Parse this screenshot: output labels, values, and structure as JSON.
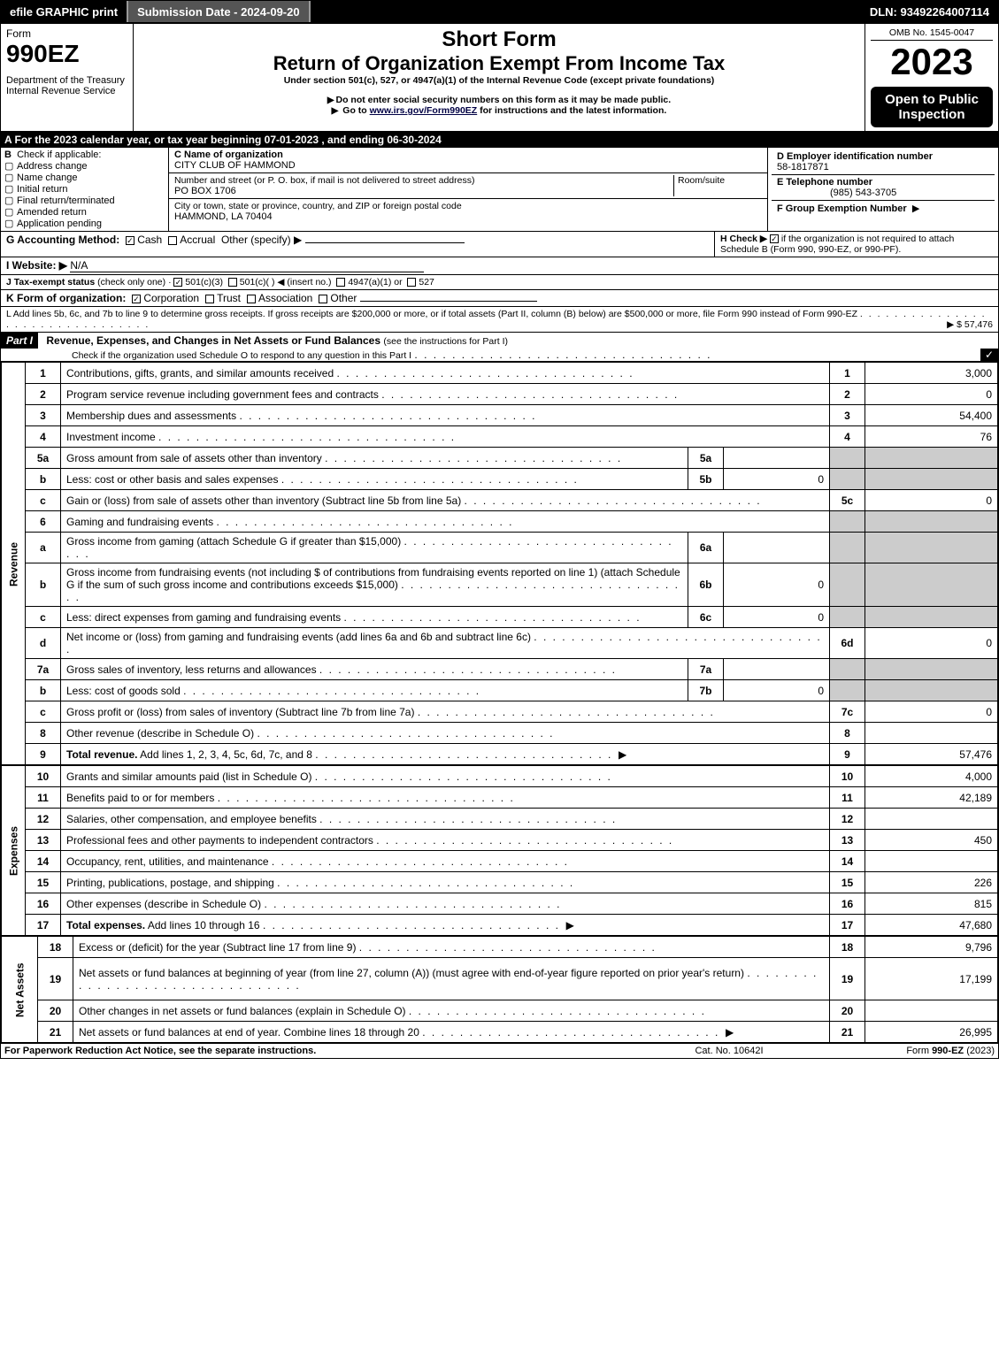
{
  "topbar": {
    "efile": "efile GRAPHIC print",
    "submission": "Submission Date - 2024-09-20",
    "dln": "DLN: 93492264007114"
  },
  "header": {
    "form_label": "Form",
    "form_no": "990EZ",
    "dept": "Department of the Treasury",
    "irs": "Internal Revenue Service",
    "short_form": "Short Form",
    "title": "Return of Organization Exempt From Income Tax",
    "subtitle": "Under section 501(c), 527, or 4947(a)(1) of the Internal Revenue Code (except private foundations)",
    "note1": "Do not enter social security numbers on this form as it may be made public.",
    "note2": "Go to",
    "note2_link": "www.irs.gov/Form990EZ",
    "note2_rest": "for instructions and the latest information.",
    "omb": "OMB No. 1545-0047",
    "year": "2023",
    "open": "Open to Public Inspection"
  },
  "section_a": "A  For the 2023 calendar year, or tax year beginning 07-01-2023 , and ending 06-30-2024",
  "box_b": {
    "title": "B",
    "label": "Check if applicable:",
    "opts": [
      "Address change",
      "Name change",
      "Initial return",
      "Final return/terminated",
      "Amended return",
      "Application pending"
    ]
  },
  "box_c": {
    "name_label": "C Name of organization",
    "name": "CITY CLUB OF HAMMOND",
    "addr_label": "Number and street (or P. O. box, if mail is not delivered to street address)",
    "addr": "PO BOX 1706",
    "room": "Room/suite",
    "city_label": "City or town, state or province, country, and ZIP or foreign postal code",
    "city": "HAMMOND, LA  70404"
  },
  "box_d": {
    "label": "D Employer identification number",
    "val": "58-1817871"
  },
  "box_e": {
    "label": "E Telephone number",
    "val": "(985) 543-3705"
  },
  "box_f": {
    "label": "F Group Exemption Number",
    "arrow": "▶"
  },
  "line_g": {
    "label": "G Accounting Method:",
    "cash": "Cash",
    "accrual": "Accrual",
    "other": "Other (specify) ▶"
  },
  "line_h": {
    "label": "H   Check ▶",
    "rest": "if the organization is not required to attach Schedule B (Form 990, 990-EZ, or 990-PF)."
  },
  "line_i": {
    "label": "I Website: ▶",
    "val": "N/A"
  },
  "line_j": {
    "label": "J Tax-exempt status",
    "note": "(check only one) ·",
    "o1": "501(c)(3)",
    "o2": "501(c)(  ) ◀ (insert no.)",
    "o3": "4947(a)(1) or",
    "o4": "527"
  },
  "line_k": {
    "label": "K Form of organization:",
    "opts": [
      "Corporation",
      "Trust",
      "Association",
      "Other"
    ]
  },
  "line_l": {
    "text": "L Add lines 5b, 6c, and 7b to line 9 to determine gross receipts. If gross receipts are $200,000 or more, or if total assets (Part II, column (B) below) are $500,000 or more, file Form 990 instead of Form 990-EZ",
    "val": "▶ $ 57,476"
  },
  "part1": {
    "bar": "Part I",
    "title": "Revenue, Expenses, and Changes in Net Assets or Fund Balances",
    "note": "(see the instructions for Part I)",
    "check_line": "Check if the organization used Schedule O to respond to any question in this Part I"
  },
  "revenue_label": "Revenue",
  "expenses_label": "Expenses",
  "netassets_label": "Net Assets",
  "rows": [
    {
      "n": "1",
      "t": "Contributions, gifts, grants, and similar amounts received",
      "rn": "1",
      "rv": "3,000"
    },
    {
      "n": "2",
      "t": "Program service revenue including government fees and contracts",
      "rn": "2",
      "rv": "0"
    },
    {
      "n": "3",
      "t": "Membership dues and assessments",
      "rn": "3",
      "rv": "54,400"
    },
    {
      "n": "4",
      "t": "Investment income",
      "rn": "4",
      "rv": "76"
    },
    {
      "n": "5a",
      "t": "Gross amount from sale of assets other than inventory",
      "mn": "5a",
      "mv": "",
      "shade": true
    },
    {
      "n": "b",
      "t": "Less: cost or other basis and sales expenses",
      "mn": "5b",
      "mv": "0",
      "shade": true
    },
    {
      "n": "c",
      "t": "Gain or (loss) from sale of assets other than inventory (Subtract line 5b from line 5a)",
      "rn": "5c",
      "rv": "0"
    },
    {
      "n": "6",
      "t": "Gaming and fundraising events",
      "shade_all": true
    },
    {
      "n": "a",
      "t": "Gross income from gaming (attach Schedule G if greater than $15,000)",
      "mn": "6a",
      "mv": "",
      "shade": true
    },
    {
      "n": "b",
      "t": "Gross income from fundraising events (not including $                      of contributions from fundraising events reported on line 1) (attach Schedule G if the sum of such gross income and contributions exceeds $15,000)",
      "mn": "6b",
      "mv": "0",
      "shade": true,
      "tall": true
    },
    {
      "n": "c",
      "t": "Less: direct expenses from gaming and fundraising events",
      "mn": "6c",
      "mv": "0",
      "shade": true
    },
    {
      "n": "d",
      "t": "Net income or (loss) from gaming and fundraising events (add lines 6a and 6b and subtract line 6c)",
      "rn": "6d",
      "rv": "0"
    },
    {
      "n": "7a",
      "t": "Gross sales of inventory, less returns and allowances",
      "mn": "7a",
      "mv": "",
      "shade": true
    },
    {
      "n": "b",
      "t": "Less: cost of goods sold",
      "mn": "7b",
      "mv": "0",
      "shade": true
    },
    {
      "n": "c",
      "t": "Gross profit or (loss) from sales of inventory (Subtract line 7b from line 7a)",
      "rn": "7c",
      "rv": "0"
    },
    {
      "n": "8",
      "t": "Other revenue (describe in Schedule O)",
      "rn": "8",
      "rv": ""
    },
    {
      "n": "9",
      "t": "Total revenue. Add lines 1, 2, 3, 4, 5c, 6d, 7c, and 8",
      "rn": "9",
      "rv": "57,476",
      "bold": true,
      "arrow": true
    }
  ],
  "exp_rows": [
    {
      "n": "10",
      "t": "Grants and similar amounts paid (list in Schedule O)",
      "rn": "10",
      "rv": "4,000"
    },
    {
      "n": "11",
      "t": "Benefits paid to or for members",
      "rn": "11",
      "rv": "42,189"
    },
    {
      "n": "12",
      "t": "Salaries, other compensation, and employee benefits",
      "rn": "12",
      "rv": ""
    },
    {
      "n": "13",
      "t": "Professional fees and other payments to independent contractors",
      "rn": "13",
      "rv": "450"
    },
    {
      "n": "14",
      "t": "Occupancy, rent, utilities, and maintenance",
      "rn": "14",
      "rv": ""
    },
    {
      "n": "15",
      "t": "Printing, publications, postage, and shipping",
      "rn": "15",
      "rv": "226"
    },
    {
      "n": "16",
      "t": "Other expenses (describe in Schedule O)",
      "rn": "16",
      "rv": "815"
    },
    {
      "n": "17",
      "t": "Total expenses. Add lines 10 through 16",
      "rn": "17",
      "rv": "47,680",
      "bold": true,
      "arrow": true
    }
  ],
  "na_rows": [
    {
      "n": "18",
      "t": "Excess or (deficit) for the year (Subtract line 17 from line 9)",
      "rn": "18",
      "rv": "9,796"
    },
    {
      "n": "19",
      "t": "Net assets or fund balances at beginning of year (from line 27, column (A)) (must agree with end-of-year figure reported on prior year's return)",
      "rn": "19",
      "rv": "17,199",
      "tall": true,
      "shade": true
    },
    {
      "n": "20",
      "t": "Other changes in net assets or fund balances (explain in Schedule O)",
      "rn": "20",
      "rv": ""
    },
    {
      "n": "21",
      "t": "Net assets or fund balances at end of year. Combine lines 18 through 20",
      "rn": "21",
      "rv": "26,995",
      "arrow": true
    }
  ],
  "footer": {
    "left": "For Paperwork Reduction Act Notice, see the separate instructions.",
    "mid": "Cat. No. 10642I",
    "right": "Form 990-EZ (2023)"
  }
}
